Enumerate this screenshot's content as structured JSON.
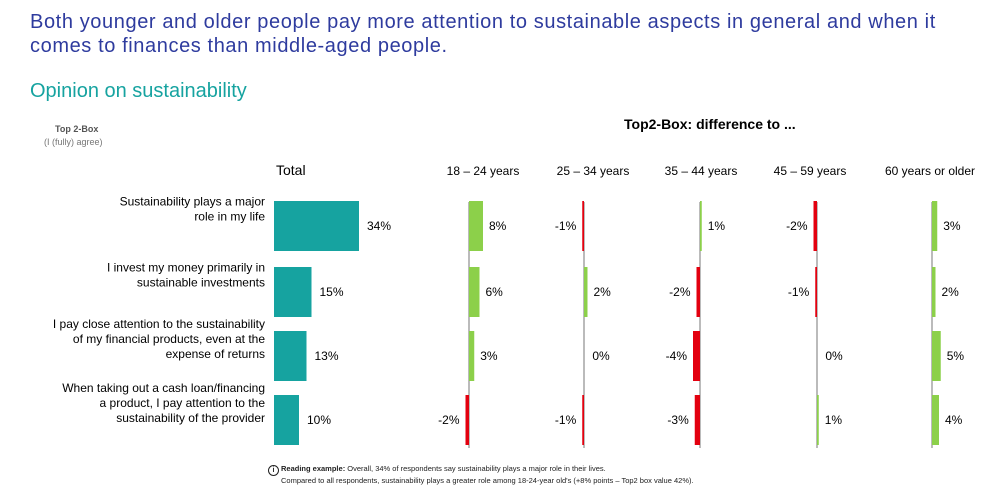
{
  "header": {
    "title": "Both younger and older people pay more attention to sustainable aspects in general and when it comes to finances than middle-aged people.",
    "subtitle": "Opinion on sustainability",
    "top2_label": "Top 2-Box",
    "top2_sublabel": "(I (fully) agree)",
    "diff_header": "Top2-Box: difference to ..."
  },
  "chart_data": {
    "type": "bar",
    "orientation": "horizontal",
    "categories": [
      [
        "Sustainability plays a major",
        "role in my life"
      ],
      [
        "I invest my money primarily in",
        "sustainable investments"
      ],
      [
        "I pay close attention to the sustainability",
        "of my financial products, even at the",
        "expense of returns"
      ],
      [
        "When taking out a cash loan/financing",
        "a product, I pay attention to the",
        "sustainability of the provider"
      ]
    ],
    "total": {
      "name": "Total",
      "values": [
        34,
        15,
        13,
        10
      ],
      "color": "#16a3a0"
    },
    "differences": [
      {
        "name": "18 – 24 years",
        "values": [
          8,
          6,
          3,
          -2
        ]
      },
      {
        "name": "25 – 34 years",
        "values": [
          -1,
          2,
          0,
          -1
        ]
      },
      {
        "name": "35 – 44 years",
        "values": [
          1,
          -2,
          -4,
          -3
        ]
      },
      {
        "name": "45 – 59 years",
        "values": [
          -2,
          -1,
          0,
          1
        ]
      },
      {
        "name": "60 years or older",
        "values": [
          3,
          2,
          5,
          4
        ]
      }
    ],
    "value_suffix": "%",
    "positive_color": "#8cd04a",
    "negative_color": "#e3000f"
  },
  "footer": {
    "info_symbol": "i",
    "label": "Reading example:",
    "line1": " Overall, 34% of respondents say sustainability plays a major role in their lives.",
    "line2": "Compared to all respondents, sustainability plays a greater role among 18-24-year old's (+8% points – Top2 box value 42%)."
  }
}
